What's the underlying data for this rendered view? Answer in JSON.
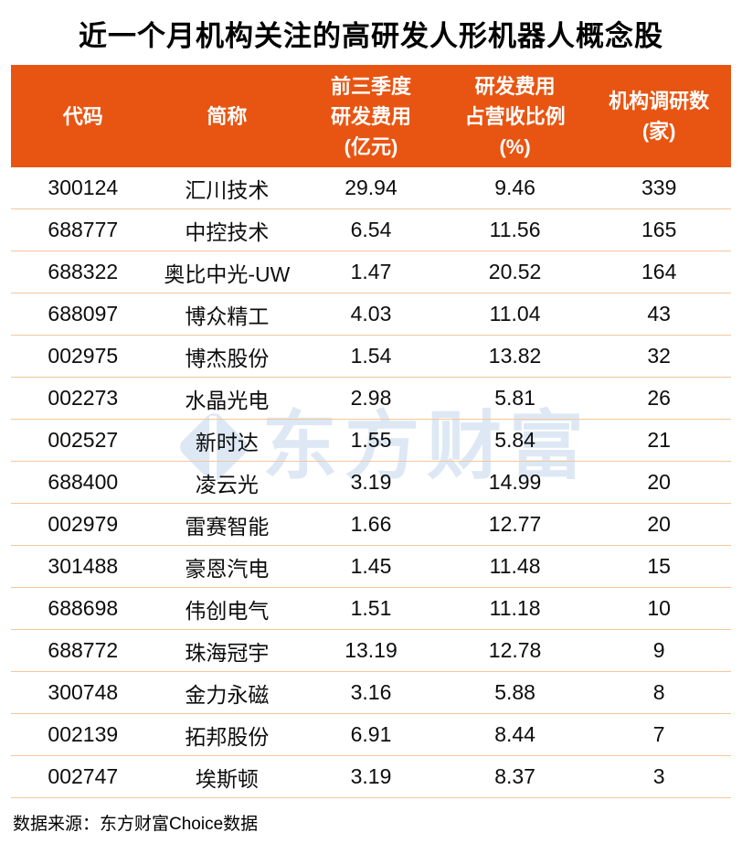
{
  "title": "近一个月机构关注的高研发人形机器人概念股",
  "watermark": {
    "text": "东方财富",
    "logo": "eastmoney-logo-icon",
    "color": "#dde8f4"
  },
  "footer": {
    "text": "数据来源：东方财富Choice数据"
  },
  "colors": {
    "header_bg": "#e85512",
    "header_text": "#ffffff",
    "row_divider": "#f4c79c",
    "body_text": "#0d0d0d"
  },
  "chart_data": {
    "type": "table",
    "title": "近一个月机构关注的高研发人形机器人概念股",
    "columns": [
      "代码",
      "简称",
      "前三季度\n研发费用\n(亿元)",
      "研发费用\n占营收比例\n(%)",
      "机构调研数\n(家)"
    ],
    "rows": [
      [
        "300124",
        "汇川技术",
        "29.94",
        "9.46",
        "339"
      ],
      [
        "688777",
        "中控技术",
        "6.54",
        "11.56",
        "165"
      ],
      [
        "688322",
        "奥比中光-UW",
        "1.47",
        "20.52",
        "164"
      ],
      [
        "688097",
        "博众精工",
        "4.03",
        "11.04",
        "43"
      ],
      [
        "002975",
        "博杰股份",
        "1.54",
        "13.82",
        "32"
      ],
      [
        "002273",
        "水晶光电",
        "2.98",
        "5.81",
        "26"
      ],
      [
        "002527",
        "新时达",
        "1.55",
        "5.84",
        "21"
      ],
      [
        "688400",
        "凌云光",
        "3.19",
        "14.99",
        "20"
      ],
      [
        "002979",
        "雷赛智能",
        "1.66",
        "12.77",
        "20"
      ],
      [
        "301488",
        "豪恩汽电",
        "1.45",
        "11.48",
        "15"
      ],
      [
        "688698",
        "伟创电气",
        "1.51",
        "11.18",
        "10"
      ],
      [
        "688772",
        "珠海冠宇",
        "13.19",
        "12.78",
        "9"
      ],
      [
        "300748",
        "金力永磁",
        "3.16",
        "5.88",
        "8"
      ],
      [
        "002139",
        "拓邦股份",
        "6.91",
        "8.44",
        "7"
      ],
      [
        "002747",
        "埃斯顿",
        "3.19",
        "8.37",
        "3"
      ]
    ],
    "source": "数据来源：东方财富Choice数据"
  }
}
